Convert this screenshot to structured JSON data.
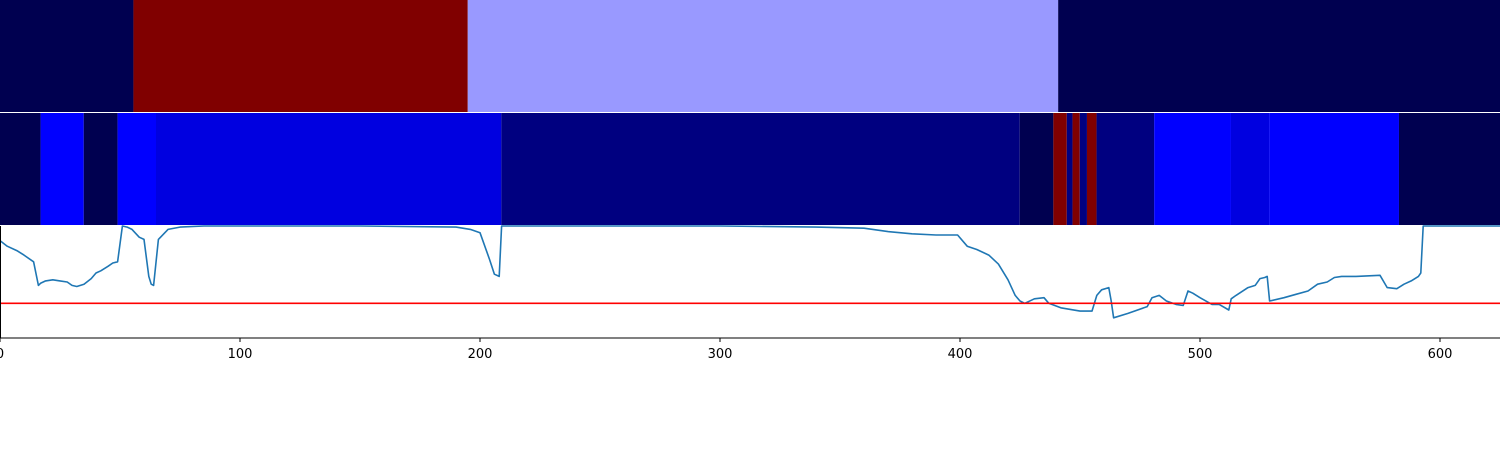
{
  "chart_data": [
    {
      "type": "heatmap",
      "xlim": [
        0,
        625
      ],
      "segments": [
        {
          "start": 0,
          "end": 55.6,
          "color": "#000050"
        },
        {
          "start": 55.6,
          "end": 194.9,
          "color": "#800000"
        },
        {
          "start": 194.9,
          "end": 440.9,
          "color": "#9999ff"
        },
        {
          "start": 440.9,
          "end": 625,
          "color": "#000050"
        }
      ]
    },
    {
      "type": "heatmap",
      "xlim": [
        0,
        625
      ],
      "segments": [
        {
          "start": 0,
          "end": 16.9,
          "color": "#000050"
        },
        {
          "start": 16.9,
          "end": 34.9,
          "color": "#0000ff"
        },
        {
          "start": 34.9,
          "end": 49.0,
          "color": "#000050"
        },
        {
          "start": 49.0,
          "end": 65.0,
          "color": "#0000ff"
        },
        {
          "start": 65.0,
          "end": 208.9,
          "color": "#0000e0"
        },
        {
          "start": 208.9,
          "end": 424.9,
          "color": "#000080"
        },
        {
          "start": 424.9,
          "end": 438.9,
          "color": "#000050"
        },
        {
          "start": 438.9,
          "end": 444.5,
          "color": "#800000"
        },
        {
          "start": 444.5,
          "end": 446.9,
          "color": "#000080"
        },
        {
          "start": 446.9,
          "end": 449.9,
          "color": "#800000"
        },
        {
          "start": 449.9,
          "end": 452.9,
          "color": "#000080"
        },
        {
          "start": 452.9,
          "end": 456.9,
          "color": "#800000"
        },
        {
          "start": 456.9,
          "end": 480.9,
          "color": "#000080"
        },
        {
          "start": 480.9,
          "end": 512.9,
          "color": "#0000ff"
        },
        {
          "start": 512.9,
          "end": 528.9,
          "color": "#0000e0"
        },
        {
          "start": 528.9,
          "end": 582.9,
          "color": "#0000ff"
        },
        {
          "start": 582.9,
          "end": 625,
          "color": "#000050"
        }
      ]
    },
    {
      "type": "line",
      "xlim": [
        0,
        625
      ],
      "ylim": [
        0,
        1
      ],
      "series": [
        {
          "color": "#1f77b4",
          "x": [
            0,
            3,
            7,
            10,
            14,
            16,
            17,
            19,
            22,
            25,
            28,
            30,
            32,
            35,
            38,
            40,
            42,
            45,
            47,
            49,
            51,
            53,
            55,
            58,
            60,
            62,
            63,
            64,
            66,
            70,
            75,
            85,
            100,
            150,
            190,
            196,
            200,
            204,
            206,
            208,
            209,
            215,
            260,
            300,
            340,
            360,
            370,
            380,
            390,
            399,
            403,
            407,
            412,
            416,
            420,
            423,
            425,
            427,
            431,
            435,
            437,
            442,
            450,
            455,
            457,
            459,
            462,
            463,
            464,
            470,
            478,
            480,
            483,
            486,
            490,
            493,
            495,
            497,
            500,
            505,
            508,
            512,
            513,
            515,
            520,
            523,
            525,
            527,
            528,
            529,
            535,
            540,
            545,
            549,
            553,
            556,
            559,
            565,
            575,
            578,
            582,
            585,
            588,
            591,
            592,
            593,
            600,
            625
          ],
          "y": [
            0.87,
            0.82,
            0.78,
            0.74,
            0.68,
            0.47,
            0.49,
            0.51,
            0.52,
            0.51,
            0.5,
            0.47,
            0.46,
            0.48,
            0.53,
            0.58,
            0.6,
            0.64,
            0.67,
            0.68,
            1.0,
            0.99,
            0.97,
            0.9,
            0.88,
            0.55,
            0.48,
            0.47,
            0.88,
            0.97,
            0.99,
            1.0,
            1.0,
            1.0,
            0.99,
            0.97,
            0.94,
            0.7,
            0.57,
            0.55,
            1.0,
            1.0,
            1.0,
            1.0,
            0.99,
            0.98,
            0.95,
            0.93,
            0.92,
            0.92,
            0.82,
            0.79,
            0.74,
            0.66,
            0.52,
            0.38,
            0.33,
            0.31,
            0.35,
            0.36,
            0.31,
            0.27,
            0.24,
            0.24,
            0.38,
            0.43,
            0.45,
            0.33,
            0.18,
            0.22,
            0.28,
            0.36,
            0.38,
            0.33,
            0.3,
            0.29,
            0.42,
            0.4,
            0.36,
            0.3,
            0.3,
            0.25,
            0.35,
            0.38,
            0.45,
            0.47,
            0.53,
            0.54,
            0.55,
            0.33,
            0.36,
            0.39,
            0.42,
            0.48,
            0.5,
            0.54,
            0.55,
            0.55,
            0.56,
            0.45,
            0.44,
            0.48,
            0.51,
            0.55,
            0.58,
            1.0,
            1.0,
            1.0
          ]
        }
      ],
      "hline": {
        "y": 0.31,
        "color": "#ff0000"
      },
      "xticks": [
        0,
        100,
        200,
        300,
        400,
        500,
        600
      ],
      "tick_labels": [
        "0",
        "100",
        "200",
        "300",
        "400",
        "500",
        "600"
      ]
    }
  ]
}
